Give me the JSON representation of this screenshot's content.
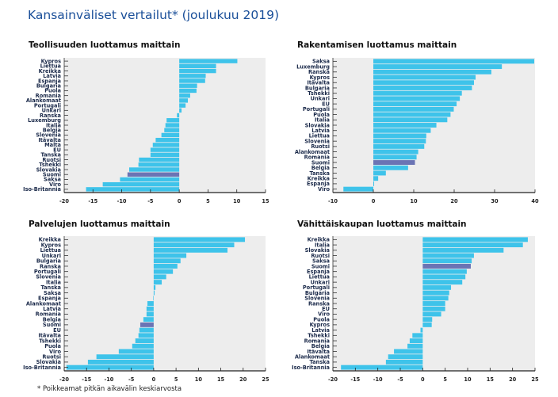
{
  "title": "Kansainväliset vertailut* (joulukuu 2019)",
  "footnote": "* Poikkeamat pitkän aikavälin keskiarvosta",
  "colors": {
    "bar": "#3ec3ea",
    "highlight": "#6b74b4",
    "plot_bg": "#ededed",
    "title": "#1a4f99"
  },
  "chart_data": [
    {
      "type": "bar",
      "orientation": "horizontal",
      "title": "Teollisuuden luottamus maittain",
      "xlim": [
        -20,
        15
      ],
      "xticks": [
        -20,
        -15,
        -10,
        -5,
        0,
        5,
        10,
        15
      ],
      "highlight": "Suomi",
      "categories": [
        "Kypros",
        "Liettua",
        "Kreikka",
        "Latvia",
        "Espanja",
        "Bulgaria",
        "Puola",
        "Romania",
        "Alankomaat",
        "Portugali",
        "Unkari",
        "Ranska",
        "Luxemburg",
        "Italia",
        "Belgia",
        "Slovenia",
        "Itävalta",
        "Malta",
        "EU",
        "Tanska",
        "Ruotsi",
        "Tshekki",
        "Slovakia",
        "Suomi",
        "Saksa",
        "Viro",
        "Iso-Britannia"
      ],
      "values": [
        10.1,
        6.4,
        6.4,
        4.6,
        4.5,
        3.1,
        3.0,
        1.9,
        1.5,
        1.1,
        0.4,
        -0.4,
        -2.2,
        -2.4,
        -2.6,
        -3.1,
        -4.1,
        -4.6,
        -5.0,
        -5.0,
        -7.0,
        -7.1,
        -8.7,
        -9.0,
        -10.3,
        -13.3,
        -16.2
      ]
    },
    {
      "type": "bar",
      "orientation": "horizontal",
      "title": "Rakentamisen luottamus maittain",
      "xlim": [
        -10,
        40
      ],
      "xticks": [
        -10,
        0,
        10,
        20,
        30,
        40
      ],
      "highlight": "Suomi",
      "categories": [
        "Saksa",
        "Luxemburg",
        "Ranska",
        "Kypros",
        "Itävalta",
        "Bulgaria",
        "Tshekki",
        "Unkari",
        "EU",
        "Portugali",
        "Puola",
        "Italia",
        "Slovakia",
        "Latvia",
        "Liettua",
        "Slovenia",
        "Ruotsi",
        "Alankomaat",
        "Romania",
        "Suomi",
        "Belgia",
        "Tanska",
        "Kreikka",
        "Espanja",
        "Viro"
      ],
      "values": [
        39.8,
        31.8,
        29.2,
        25.3,
        24.9,
        24.4,
        21.9,
        21.4,
        20.6,
        19.9,
        19.1,
        18.3,
        15.6,
        14.2,
        13.1,
        13.0,
        12.6,
        11.1,
        10.7,
        10.3,
        8.6,
        3.1,
        1.2,
        0.2,
        -7.4
      ]
    },
    {
      "type": "bar",
      "orientation": "horizontal",
      "title": "Palvelujen luottamus maittain",
      "xlim": [
        -20,
        25
      ],
      "xticks": [
        -20,
        -15,
        -10,
        -5,
        0,
        5,
        10,
        15,
        20,
        25
      ],
      "highlight": "Suomi",
      "categories": [
        "Kreikka",
        "Kypros",
        "Liettua",
        "Unkari",
        "Bulgaria",
        "Ranska",
        "Portugali",
        "Slovenia",
        "Italia",
        "Tanska",
        "Saksa",
        "Espanja",
        "Alankomaat",
        "Latvia",
        "Romania",
        "Belgia",
        "Suomi",
        "EU",
        "Itävalta",
        "Tshekki",
        "Puola",
        "Viro",
        "Ruotsi",
        "Slovakia",
        "Iso-Britannia"
      ],
      "values": [
        20.4,
        18.0,
        16.5,
        7.3,
        6.0,
        5.3,
        4.3,
        2.8,
        1.8,
        0.4,
        0.2,
        -0.1,
        -1.4,
        -1.6,
        -1.6,
        -2.3,
        -3.0,
        -3.2,
        -3.4,
        -4.1,
        -4.8,
        -7.8,
        -12.8,
        -14.7,
        -19.5
      ]
    },
    {
      "type": "bar",
      "orientation": "horizontal",
      "title": "Vähittäiskaupan luottamus maittain",
      "xlim": [
        -20,
        25
      ],
      "xticks": [
        -20,
        -15,
        -10,
        -5,
        0,
        5,
        10,
        15,
        20,
        25
      ],
      "highlight": "Suomi",
      "categories": [
        "Kreikka",
        "Italia",
        "Slovakia",
        "Ruotsi",
        "Saksa",
        "Suomi",
        "Espanja",
        "Liettua",
        "Unkari",
        "Portugali",
        "Bulgaria",
        "Slovenia",
        "Ranska",
        "EU",
        "Viro",
        "Puola",
        "Kypros",
        "Latvia",
        "Tshekki",
        "Romania",
        "Belgia",
        "Itävalta",
        "Alankomaat",
        "Tanska",
        "Iso-Britannia"
      ],
      "values": [
        23.4,
        22.3,
        18.0,
        11.4,
        10.9,
        10.7,
        9.8,
        9.5,
        8.8,
        6.3,
        5.9,
        5.7,
        5.0,
        5.0,
        4.1,
        2.1,
        2.0,
        -0.5,
        -2.3,
        -2.9,
        -3.4,
        -6.4,
        -7.7,
        -8.2,
        -18.2
      ]
    }
  ]
}
